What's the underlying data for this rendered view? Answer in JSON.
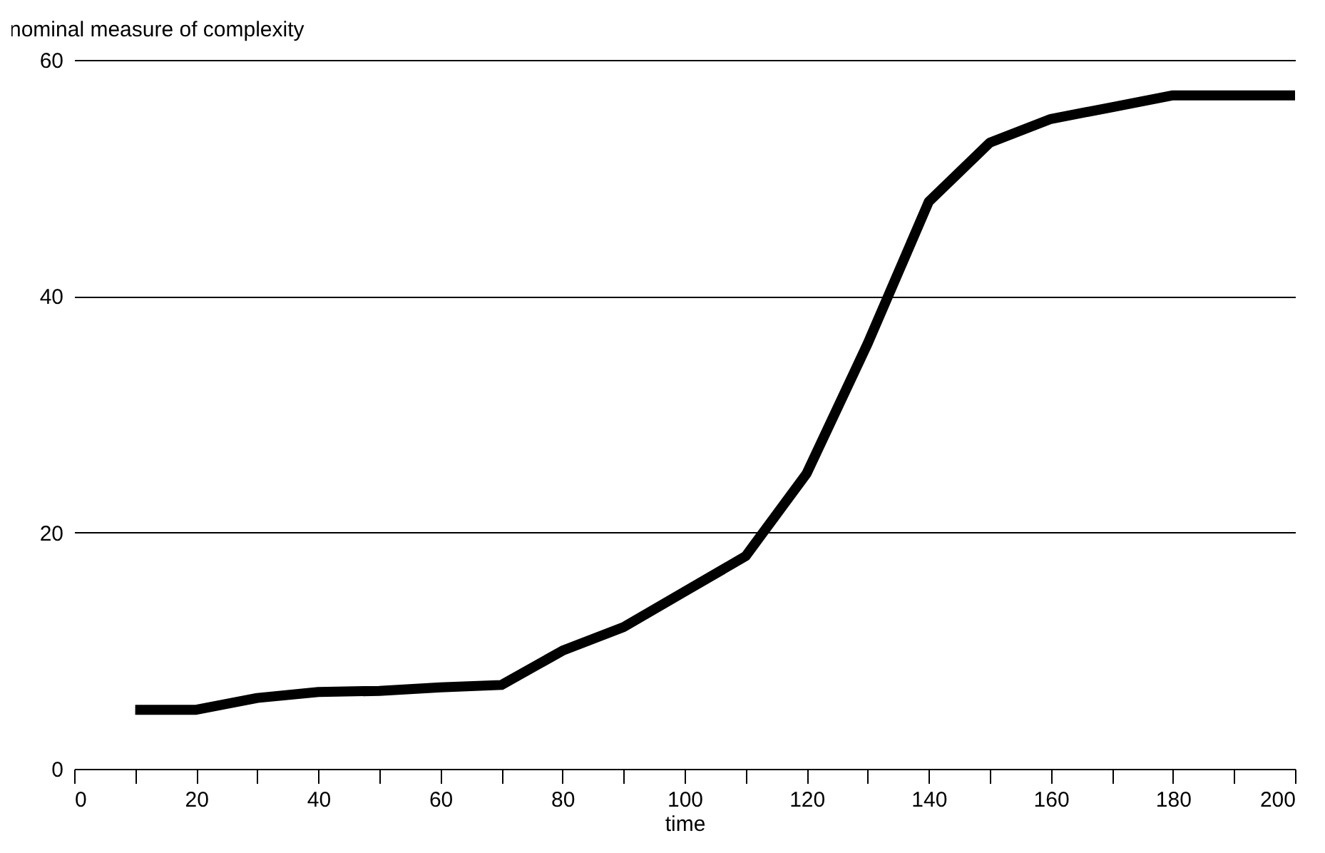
{
  "chart_data": {
    "type": "line",
    "xlabel": "time",
    "ylabel": "nominal measure of complexity",
    "x": [
      10,
      20,
      30,
      40,
      50,
      60,
      70,
      80,
      90,
      100,
      110,
      120,
      130,
      140,
      150,
      160,
      170,
      180,
      190,
      200
    ],
    "series": [
      {
        "color": "#000000",
        "values": [
          5,
          5,
          6,
          6.5,
          6.6,
          6.9,
          7.1,
          10,
          12,
          15,
          18,
          25,
          36,
          48,
          53,
          55,
          56,
          57,
          57,
          57
        ]
      }
    ],
    "xlim": [
      0,
      200
    ],
    "xticks": [
      0,
      {
        "value": 10,
        "label": null
      },
      20,
      {
        "value": 30,
        "label": null
      },
      40,
      {
        "value": 50,
        "label": null
      },
      60,
      {
        "value": 70,
        "label": null
      },
      80,
      {
        "value": 90,
        "label": null
      },
      100,
      {
        "value": 110,
        "label": null
      },
      120,
      {
        "value": 130,
        "label": null
      },
      140,
      {
        "value": 150,
        "label": null
      },
      160,
      {
        "value": 170,
        "label": null
      },
      180,
      {
        "value": 190,
        "label": null
      },
      200
    ],
    "ylim": [
      0,
      60
    ],
    "yticks": [
      0,
      20,
      40,
      60
    ],
    "grid": "y",
    "marker": "none",
    "line_style": "solid"
  }
}
